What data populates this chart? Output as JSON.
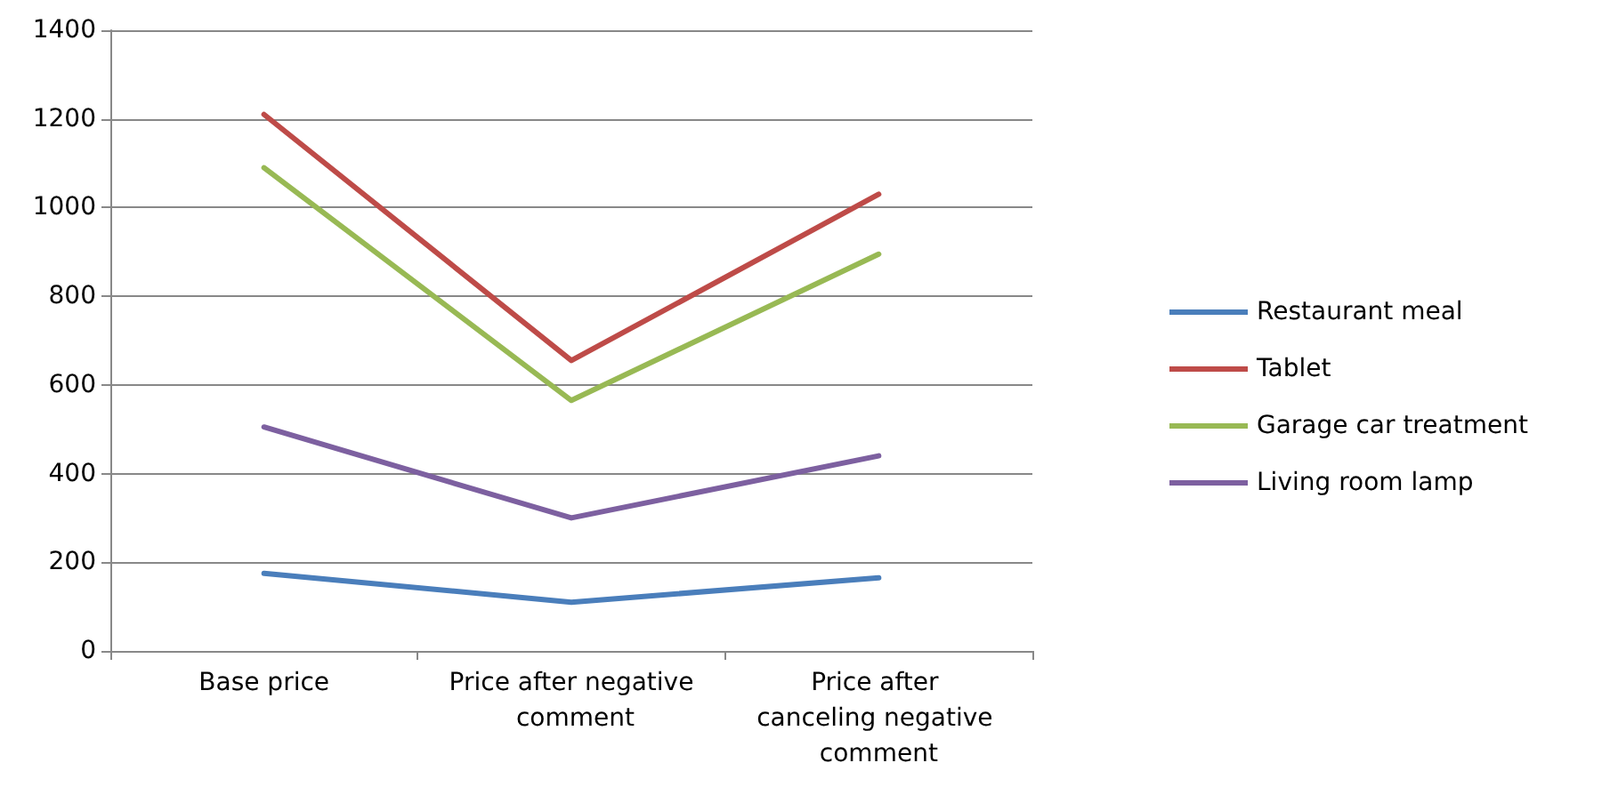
{
  "chart_data": {
    "type": "line",
    "categories": [
      "Base price",
      "Price after negative comment",
      "Price after canceling negative comment"
    ],
    "series": [
      {
        "name": "Restaurant meal",
        "color": "#4a7ebb",
        "values": [
          175,
          110,
          165
        ]
      },
      {
        "name": "Tablet",
        "color": "#be4b48",
        "values": [
          1210,
          655,
          1030
        ]
      },
      {
        "name": "Garage car treatment",
        "color": "#98b954",
        "values": [
          1090,
          565,
          895
        ]
      },
      {
        "name": "Living room lamp",
        "color": "#7d60a0",
        "values": [
          505,
          300,
          440
        ]
      }
    ],
    "ylim": [
      0,
      1400
    ],
    "yticks": [
      0,
      200,
      400,
      600,
      800,
      1000,
      1200,
      1400
    ],
    "grid": "y",
    "legend": "right",
    "marker": "none"
  }
}
